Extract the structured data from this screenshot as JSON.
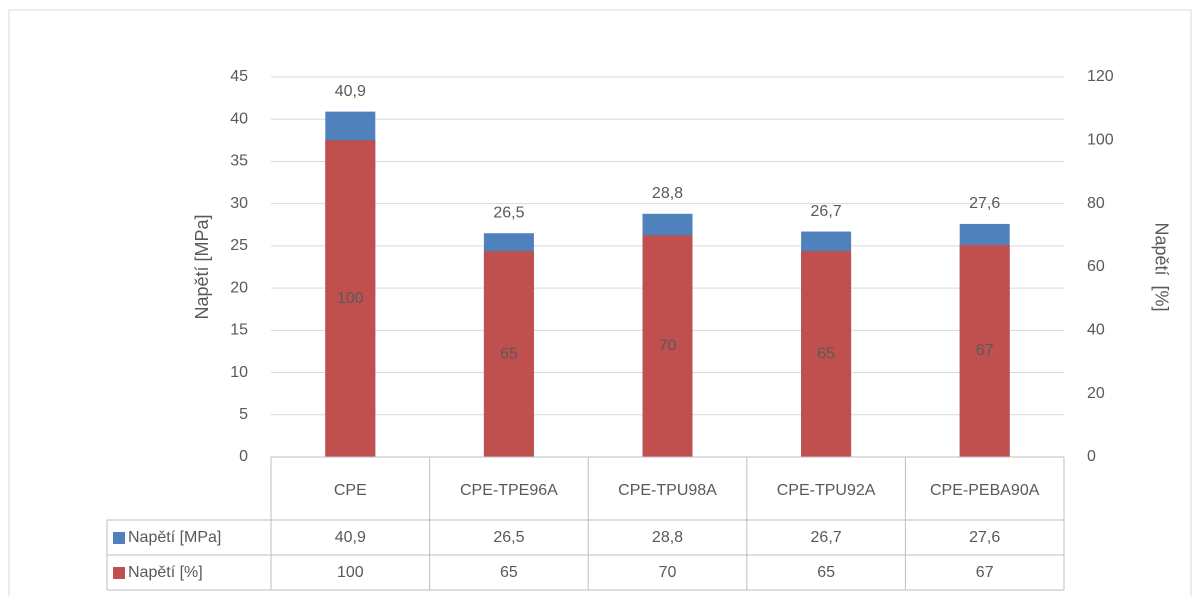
{
  "chart_data": {
    "type": "bar",
    "categories": [
      "CPE",
      "CPE-TPE96A",
      "CPE-TPU98A",
      "CPE-TPU92A",
      "CPE-PEBA90A"
    ],
    "series": [
      {
        "name": "Napětí [MPa]",
        "color": "#4f81bd",
        "values": [
          40.9,
          26.5,
          28.8,
          26.7,
          27.6
        ],
        "value_labels": [
          "40,9",
          "26,5",
          "28,8",
          "26,7",
          "27,6"
        ]
      },
      {
        "name": "Napětí [%]",
        "color": "#c0504d",
        "axis": "y2",
        "values": [
          100,
          65,
          70,
          65,
          67
        ]
      }
    ],
    "y_label": "Napětí [MPa]",
    "y2_label": "Napětí  [%]",
    "ylim": [
      0,
      45
    ],
    "yticks": [
      0,
      5,
      10,
      15,
      20,
      25,
      30,
      35,
      40,
      45
    ],
    "y2lim": [
      0,
      120
    ],
    "y2ticks": [
      0,
      20,
      40,
      60,
      80,
      100,
      120
    ],
    "grid": true
  }
}
